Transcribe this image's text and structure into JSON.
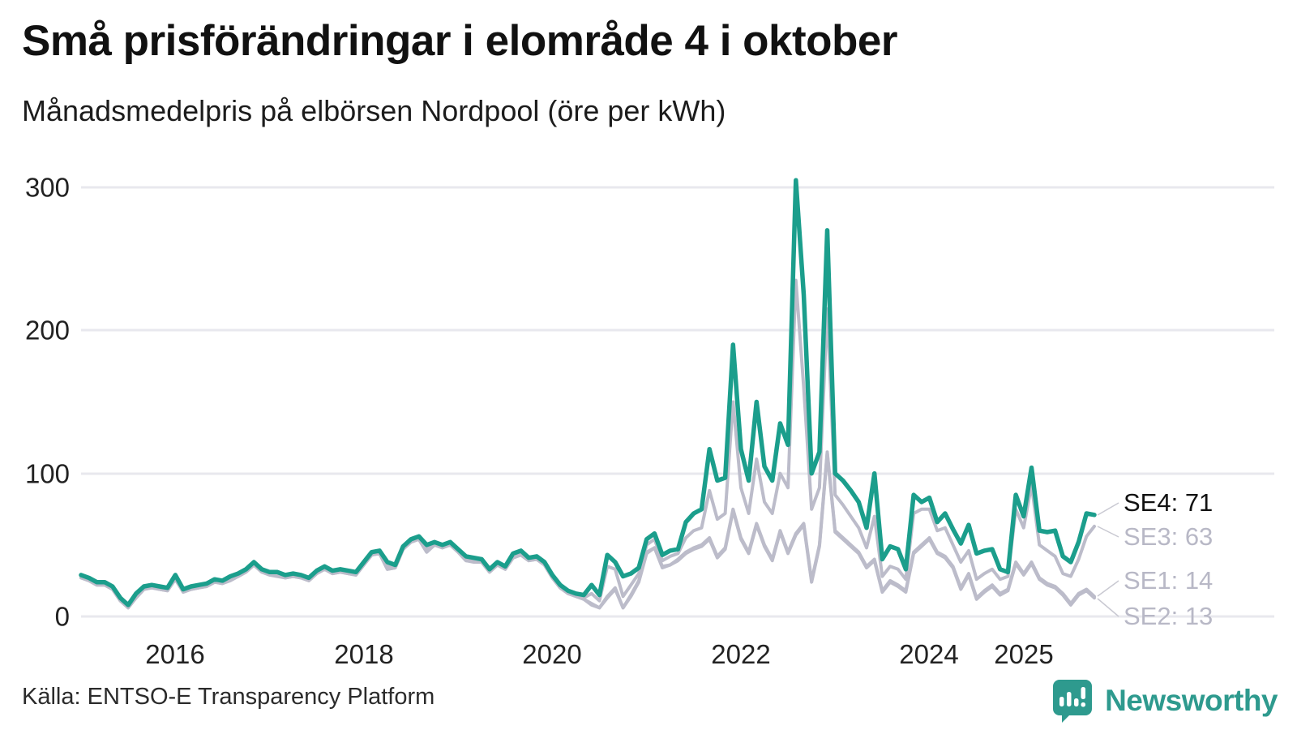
{
  "header": {
    "title": "Små prisförändringar i elområde 4 i oktober",
    "subtitle": "Månadsmedelpris på elbörsen Nordpool (öre per kWh)"
  },
  "footer": {
    "source": "Källa: ENTSO-E Transparency Platform",
    "brand": "Newsworthy"
  },
  "colors": {
    "se4_teal": "#1b9e8c",
    "gray_series": "#bcbcca",
    "gridline": "#e8e8ee",
    "annotation_gray": "#b8b8c6",
    "text_dark": "#111111",
    "logo_teal": "#2e9a8e"
  },
  "chart_data": {
    "type": "line",
    "title": "Små prisförändringar i elområde 4 i oktober",
    "subtitle": "Månadsmedelpris på elbörsen Nordpool (öre per kWh)",
    "ylabel": "öre per kWh",
    "ylim": [
      0,
      310
    ],
    "grid": "horizontal",
    "legend_position": "end-of-line-labels",
    "x_start": "2015-01",
    "x_end": "2025-10",
    "x_frequency": "monthly",
    "ytick_labels": [
      "300",
      "200",
      "100",
      "0"
    ],
    "yticks": [
      300,
      200,
      100,
      0
    ],
    "xticks": [
      {
        "label": "2016",
        "month_index": 12
      },
      {
        "label": "2018",
        "month_index": 36
      },
      {
        "label": "2020",
        "month_index": 60
      },
      {
        "label": "2022",
        "month_index": 84
      },
      {
        "label": "2024",
        "month_index": 108
      },
      {
        "label": "2025",
        "month_index": 120
      }
    ],
    "series": [
      {
        "name": "SE4",
        "end_label": "SE4: 71",
        "end_value": 71,
        "color": "#1b9e8c",
        "width": 5.5,
        "values": [
          29,
          27,
          24,
          24,
          21,
          13,
          8,
          16,
          21,
          22,
          21,
          20,
          29,
          19,
          21,
          22,
          23,
          26,
          25,
          28,
          30,
          33,
          38,
          33,
          31,
          31,
          29,
          30,
          29,
          27,
          32,
          35,
          32,
          33,
          32,
          31,
          38,
          45,
          46,
          38,
          36,
          49,
          54,
          56,
          50,
          52,
          50,
          52,
          47,
          42,
          41,
          40,
          33,
          38,
          35,
          44,
          46,
          41,
          42,
          38,
          29,
          22,
          18,
          16,
          15,
          22,
          15,
          43,
          38,
          28,
          30,
          34,
          54,
          58,
          43,
          46,
          47,
          66,
          72,
          75,
          117,
          95,
          97,
          190,
          117,
          95,
          150,
          105,
          95,
          135,
          120,
          305,
          225,
          100,
          115,
          270,
          100,
          95,
          88,
          80,
          62,
          100,
          40,
          49,
          47,
          33,
          85,
          80,
          83,
          66,
          72,
          61,
          51,
          64,
          44,
          46,
          47,
          33,
          31,
          85,
          70,
          104,
          60,
          59,
          60,
          42,
          38,
          52,
          72,
          71
        ]
      },
      {
        "name": "SE3",
        "end_label": "SE3: 63",
        "end_value": 63,
        "color": "#bcbcca",
        "width": 4,
        "values": [
          28,
          26,
          23,
          23,
          20,
          12,
          7,
          14,
          20,
          21,
          20,
          19,
          28,
          18,
          20,
          21,
          22,
          25,
          24,
          27,
          29,
          32,
          37,
          32,
          30,
          30,
          28,
          29,
          28,
          26,
          31,
          34,
          31,
          32,
          31,
          30,
          37,
          44,
          45,
          35,
          35,
          48,
          53,
          55,
          47,
          51,
          49,
          51,
          46,
          40,
          40,
          39,
          32,
          37,
          34,
          42,
          44,
          40,
          41,
          37,
          28,
          21,
          17,
          15,
          13,
          16,
          11,
          35,
          33,
          14,
          22,
          30,
          50,
          54,
          39,
          42,
          44,
          55,
          60,
          62,
          88,
          68,
          72,
          150,
          90,
          72,
          110,
          80,
          72,
          100,
          90,
          235,
          160,
          75,
          90,
          215,
          85,
          78,
          70,
          62,
          48,
          70,
          28,
          35,
          33,
          26,
          72,
          75,
          75,
          60,
          62,
          50,
          38,
          46,
          26,
          30,
          33,
          26,
          28,
          75,
          62,
          92,
          50,
          46,
          42,
          30,
          28,
          40,
          56,
          63
        ]
      },
      {
        "name": "SE1",
        "end_label": "SE1: 14",
        "end_value": 14,
        "color": "#bcbcca",
        "width": 4,
        "values": [
          27,
          25,
          22,
          22,
          19,
          11,
          7,
          13,
          19,
          20,
          19,
          18,
          27,
          17,
          19,
          20,
          21,
          24,
          23,
          26,
          28,
          31,
          36,
          31,
          29,
          29,
          27,
          28,
          27,
          25,
          30,
          33,
          30,
          31,
          30,
          29,
          36,
          43,
          44,
          33,
          34,
          47,
          52,
          54,
          45,
          50,
          48,
          50,
          45,
          39,
          39,
          38,
          31,
          36,
          33,
          41,
          43,
          39,
          40,
          36,
          27,
          20,
          16,
          14,
          12,
          9,
          6,
          14,
          20,
          6,
          15,
          25,
          45,
          48,
          35,
          36,
          40,
          45,
          48,
          50,
          55,
          42,
          48,
          75,
          55,
          45,
          65,
          50,
          40,
          60,
          45,
          58,
          65,
          25,
          50,
          115,
          60,
          55,
          50,
          45,
          35,
          40,
          18,
          25,
          22,
          18,
          45,
          50,
          55,
          45,
          42,
          35,
          20,
          30,
          13,
          18,
          22,
          16,
          19,
          38,
          30,
          38,
          27,
          23,
          21,
          16,
          9,
          16,
          19,
          14
        ]
      },
      {
        "name": "SE2",
        "end_label": "SE2: 13",
        "end_value": 13,
        "color": "#bcbcca",
        "width": 4,
        "values": [
          27,
          25,
          22,
          22,
          19,
          11,
          6,
          13,
          19,
          20,
          19,
          18,
          26,
          17,
          19,
          20,
          21,
          24,
          23,
          25,
          28,
          31,
          36,
          31,
          29,
          28,
          27,
          28,
          27,
          25,
          30,
          33,
          30,
          31,
          30,
          29,
          36,
          43,
          44,
          33,
          34,
          47,
          52,
          54,
          45,
          50,
          48,
          50,
          45,
          39,
          38,
          38,
          31,
          36,
          33,
          41,
          43,
          39,
          40,
          36,
          27,
          20,
          16,
          14,
          12,
          8,
          6,
          13,
          19,
          6,
          14,
          24,
          44,
          48,
          34,
          36,
          39,
          44,
          47,
          49,
          54,
          41,
          47,
          74,
          54,
          44,
          64,
          49,
          39,
          59,
          44,
          57,
          64,
          24,
          49,
          114,
          59,
          54,
          49,
          44,
          34,
          39,
          17,
          24,
          21,
          17,
          44,
          49,
          54,
          44,
          41,
          34,
          19,
          29,
          12,
          17,
          21,
          15,
          18,
          37,
          29,
          37,
          26,
          22,
          20,
          15,
          8,
          15,
          18,
          13
        ]
      }
    ]
  }
}
